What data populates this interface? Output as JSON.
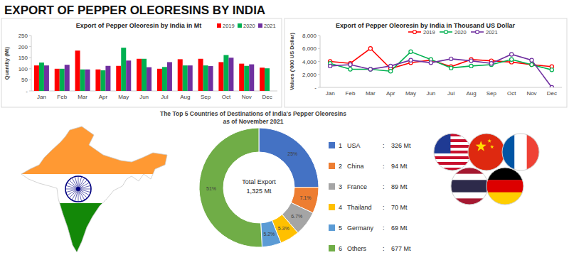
{
  "title": "EXPORT OF PEPPER OLEORESINS BY INDIA",
  "chart_data": [
    {
      "type": "bar",
      "title": "Export of Pepper Oleoresin by India in Mt",
      "ylabel": "Quantity (Mt)",
      "categories": [
        "Jan",
        "Feb",
        "Mar",
        "Apr",
        "May",
        "Jun",
        "Jul",
        "Aug",
        "Sep",
        "Oct",
        "Nov",
        "Dec"
      ],
      "series": [
        {
          "name": "2019",
          "color": "#ff0000",
          "values": [
            115,
            100,
            182,
            97,
            113,
            145,
            100,
            143,
            145,
            130,
            123,
            105
          ]
        },
        {
          "name": "2020",
          "color": "#00b050",
          "values": [
            128,
            100,
            97,
            93,
            195,
            145,
            108,
            115,
            115,
            162,
            113,
            102
          ]
        },
        {
          "name": "2021",
          "color": "#7030a0",
          "values": [
            115,
            118,
            97,
            113,
            137,
            107,
            130,
            115,
            112,
            150,
            120,
            null
          ]
        }
      ],
      "ylim": [
        0,
        250
      ],
      "yticks": [
        {
          "value": 0,
          "label": "-"
        },
        50,
        100,
        150,
        200,
        250
      ],
      "grid": false,
      "legend": "top-right"
    },
    {
      "type": "line",
      "title": "Export of Pepper Oleoresin by India in Thousand US Dollar",
      "ylabel": "Values ('000 US Dollar)",
      "categories": [
        "Jan",
        "Feb",
        "Mar",
        "Apr",
        "May",
        "Jun",
        "Jul",
        "Aug",
        "Sep",
        "Oct",
        "Nov",
        "Dec"
      ],
      "series": [
        {
          "name": "2019",
          "color": "#ff0000",
          "values": [
            4000,
            3700,
            6000,
            2900,
            3800,
            4200,
            3200,
            4300,
            4100,
            3900,
            3500,
            3200
          ]
        },
        {
          "name": "2020",
          "color": "#00b050",
          "values": [
            3700,
            2800,
            2800,
            2500,
            5500,
            4300,
            3000,
            3300,
            3500,
            4300,
            3500,
            2700
          ]
        },
        {
          "name": "2021",
          "color": "#7030a0",
          "values": [
            3300,
            3500,
            2800,
            3300,
            4200,
            3800,
            4400,
            4100,
            3700,
            5100,
            4200,
            0
          ]
        }
      ],
      "ylim": [
        0,
        8000
      ],
      "yticks": [
        {
          "value": 0,
          "label": "-"
        },
        {
          "value": 2000,
          "label": "2,000"
        },
        {
          "value": 4000,
          "label": "4,000"
        },
        {
          "value": 6000,
          "label": "6,000"
        },
        {
          "value": 8000,
          "label": "8,000"
        }
      ],
      "grid": false,
      "marker": "circle",
      "legend": "top"
    },
    {
      "type": "donut",
      "title": "The Top 5 Countries of Destinations of India's Pepper Oleoresins",
      "subtitle": "as of November 2021",
      "center_text": [
        "Total Export",
        "1,325 Mt"
      ],
      "categories": [
        "USA",
        "China",
        "France",
        "Thailand",
        "Germany",
        "Others"
      ],
      "ranks": [
        1,
        2,
        3,
        4,
        5,
        6
      ],
      "separator": ":",
      "quantity_labels": [
        "326 Mt",
        "94 Mt",
        "89 Mt",
        "70 Mt",
        "69 Mt",
        "677 Mt"
      ],
      "values": [
        25,
        7.1,
        6.7,
        5.3,
        5.2,
        51
      ],
      "value_labels": [
        "25%",
        "7.1%",
        "6.7%",
        "5.3%",
        "5.2%",
        "51%"
      ],
      "colors": [
        "#4472c4",
        "#ed7d31",
        "#a5a5a5",
        "#ffc000",
        "#5b9bd5",
        "#70ad47"
      ],
      "data_labels": true,
      "legend": "right"
    }
  ]
}
